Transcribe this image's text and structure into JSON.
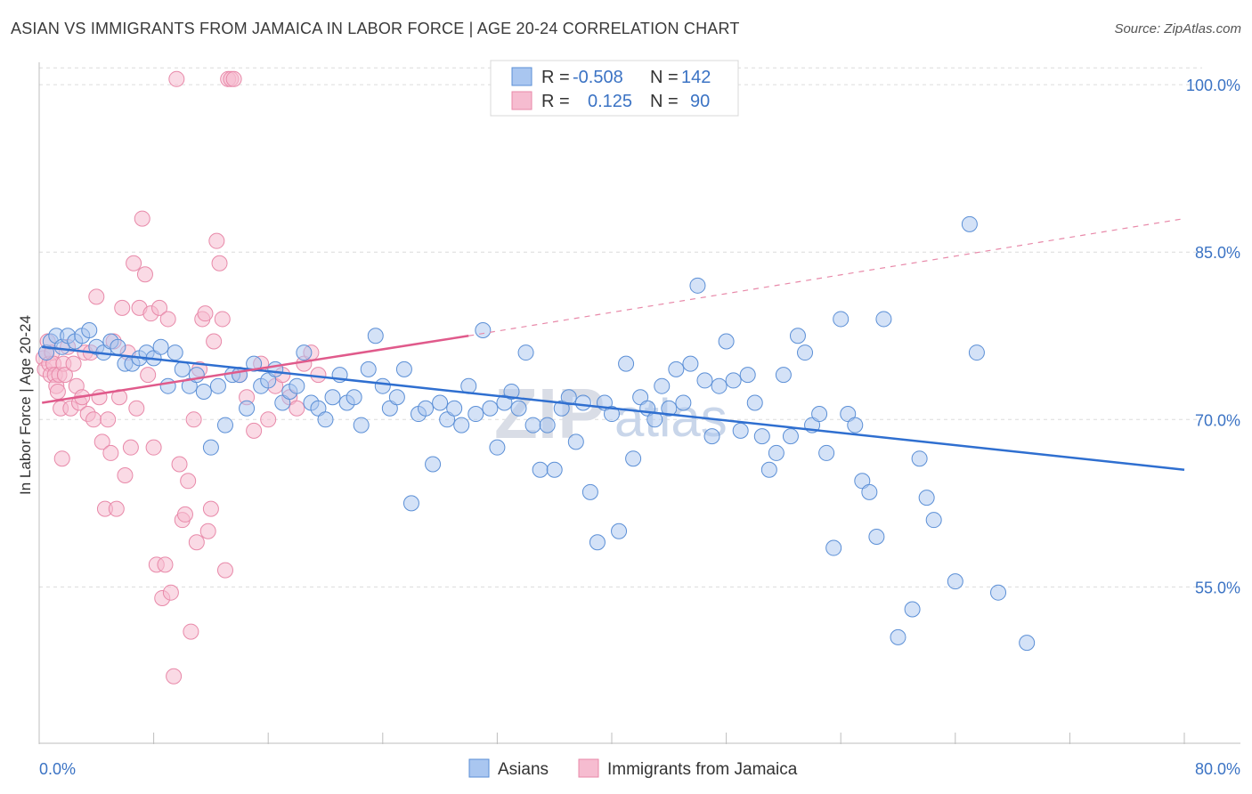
{
  "title": "ASIAN VS IMMIGRANTS FROM JAMAICA IN LABOR FORCE | AGE 20-24 CORRELATION CHART",
  "source": "Source: ZipAtlas.com",
  "watermark": {
    "zip": "ZIP",
    "atlas": "atlas"
  },
  "chart_data": {
    "type": "scatter",
    "title": "ASIAN VS IMMIGRANTS FROM JAMAICA IN LABOR FORCE | AGE 20-24 CORRELATION CHART",
    "ylabel": "In Labor Force | Age 20-24",
    "xlabel": "",
    "xlim": [
      0,
      80
    ],
    "ylim": [
      41,
      102
    ],
    "x_tick_labels": [
      "0.0%",
      "80.0%"
    ],
    "y_ticks": [
      55,
      70,
      85,
      100
    ],
    "y_tick_labels": [
      "55.0%",
      "70.0%",
      "85.0%",
      "100.0%"
    ],
    "grid": true,
    "legend": {
      "placement": "top-center",
      "entries": [
        {
          "r_label": "R =",
          "r_value": "-0.508",
          "n_label": "N =",
          "n_value": "142"
        },
        {
          "r_label": "R =",
          "r_value": "0.125",
          "n_label": "N =",
          "n_value": "90"
        }
      ]
    },
    "bottom_legend": [
      "Asians",
      "Immigrants from Jamaica"
    ],
    "colors": {
      "asians_fill": "#a9c6f0",
      "asians_stroke": "#5b8fd6",
      "asians_line": "#2f6fd0",
      "jamaica_fill": "#f6bcd0",
      "jamaica_stroke": "#e889a9",
      "jamaica_line": "#e05a8b",
      "axis_text": "#3b73c4"
    },
    "series": [
      {
        "name": "Asians",
        "trend": {
          "x0": 0.2,
          "y0": 76.5,
          "x1": 80,
          "y1": 65.5
        },
        "points": [
          [
            0.5,
            76
          ],
          [
            0.8,
            77
          ],
          [
            1.2,
            77.5
          ],
          [
            1.6,
            76.5
          ],
          [
            2,
            77.5
          ],
          [
            2.5,
            77
          ],
          [
            3,
            77.5
          ],
          [
            3.5,
            78
          ],
          [
            4,
            76.5
          ],
          [
            4.5,
            76
          ],
          [
            5,
            77
          ],
          [
            5.5,
            76.5
          ],
          [
            6,
            75
          ],
          [
            6.5,
            75
          ],
          [
            7,
            75.5
          ],
          [
            7.5,
            76
          ],
          [
            8,
            75.5
          ],
          [
            8.5,
            76.5
          ],
          [
            9,
            73
          ],
          [
            9.5,
            76
          ],
          [
            10,
            74.5
          ],
          [
            10.5,
            73
          ],
          [
            11,
            74
          ],
          [
            11.5,
            72.5
          ],
          [
            12,
            67.5
          ],
          [
            12.5,
            73
          ],
          [
            13,
            69.5
          ],
          [
            13.5,
            74
          ],
          [
            14,
            74
          ],
          [
            14.5,
            71
          ],
          [
            15,
            75
          ],
          [
            15.5,
            73
          ],
          [
            16,
            73.5
          ],
          [
            16.5,
            74.5
          ],
          [
            17,
            71.5
          ],
          [
            17.5,
            72.5
          ],
          [
            18,
            73
          ],
          [
            18.5,
            76
          ],
          [
            19,
            71.5
          ],
          [
            19.5,
            71
          ],
          [
            20,
            70
          ],
          [
            20.5,
            72
          ],
          [
            21,
            74
          ],
          [
            21.5,
            71.5
          ],
          [
            22,
            72
          ],
          [
            22.5,
            69.5
          ],
          [
            23,
            74.5
          ],
          [
            23.5,
            77.5
          ],
          [
            24,
            73
          ],
          [
            24.5,
            71
          ],
          [
            25,
            72
          ],
          [
            25.5,
            74.5
          ],
          [
            26,
            62.5
          ],
          [
            26.5,
            70.5
          ],
          [
            27,
            71
          ],
          [
            27.5,
            66
          ],
          [
            28,
            71.5
          ],
          [
            28.5,
            70
          ],
          [
            29,
            71
          ],
          [
            29.5,
            69.5
          ],
          [
            30,
            73
          ],
          [
            30.5,
            70.5
          ],
          [
            31,
            78
          ],
          [
            31.5,
            71
          ],
          [
            32,
            67.5
          ],
          [
            32.5,
            71.5
          ],
          [
            33,
            72.5
          ],
          [
            33.5,
            71
          ],
          [
            34,
            76
          ],
          [
            34.5,
            69.5
          ],
          [
            35,
            65.5
          ],
          [
            35.5,
            69.5
          ],
          [
            36,
            65.5
          ],
          [
            36.5,
            71
          ],
          [
            37,
            72
          ],
          [
            37.5,
            68
          ],
          [
            38,
            71.5
          ],
          [
            38.5,
            63.5
          ],
          [
            39,
            59
          ],
          [
            39.5,
            71.5
          ],
          [
            40,
            70.5
          ],
          [
            40.5,
            60
          ],
          [
            41,
            75
          ],
          [
            41.5,
            66.5
          ],
          [
            42,
            72
          ],
          [
            42.5,
            71
          ],
          [
            43,
            70
          ],
          [
            43.5,
            73
          ],
          [
            44,
            71
          ],
          [
            44.5,
            74.5
          ],
          [
            45,
            71.5
          ],
          [
            45.5,
            75
          ],
          [
            46,
            82
          ],
          [
            46.5,
            73.5
          ],
          [
            47,
            68.5
          ],
          [
            47.5,
            73
          ],
          [
            48,
            77
          ],
          [
            48.5,
            73.5
          ],
          [
            49,
            69
          ],
          [
            49.5,
            74
          ],
          [
            50,
            71.5
          ],
          [
            50.5,
            68.5
          ],
          [
            51,
            65.5
          ],
          [
            51.5,
            67
          ],
          [
            52,
            74
          ],
          [
            52.5,
            68.5
          ],
          [
            53,
            77.5
          ],
          [
            53.5,
            76
          ],
          [
            54,
            69.5
          ],
          [
            54.5,
            70.5
          ],
          [
            55,
            67
          ],
          [
            55.5,
            58.5
          ],
          [
            56,
            79
          ],
          [
            56.5,
            70.5
          ],
          [
            57,
            69.5
          ],
          [
            57.5,
            64.5
          ],
          [
            58,
            63.5
          ],
          [
            58.5,
            59.5
          ],
          [
            59,
            79
          ],
          [
            60,
            50.5
          ],
          [
            61,
            53
          ],
          [
            61.5,
            66.5
          ],
          [
            62,
            63
          ],
          [
            62.5,
            61
          ],
          [
            64,
            55.5
          ],
          [
            65,
            87.5
          ],
          [
            65.5,
            76
          ],
          [
            67,
            54.5
          ],
          [
            69,
            50
          ]
        ]
      },
      {
        "name": "Immigrants from Jamaica",
        "trend": {
          "x0": 0.2,
          "y0": 71.5,
          "x1": 30,
          "y1": 77.5
        },
        "trend_dashed": {
          "x0": 30,
          "y0": 77.5,
          "x1": 80,
          "y1": 88
        },
        "points": [
          [
            0.3,
            75.5
          ],
          [
            0.4,
            74.5
          ],
          [
            0.5,
            76
          ],
          [
            0.6,
            77
          ],
          [
            0.7,
            75
          ],
          [
            0.8,
            74
          ],
          [
            0.9,
            76
          ],
          [
            1,
            75
          ],
          [
            1.1,
            74
          ],
          [
            1.2,
            73
          ],
          [
            1.3,
            72.5
          ],
          [
            1.4,
            74
          ],
          [
            1.5,
            71
          ],
          [
            1.6,
            66.5
          ],
          [
            1.7,
            75
          ],
          [
            1.8,
            74
          ],
          [
            2,
            76.5
          ],
          [
            2.2,
            71
          ],
          [
            2.4,
            75
          ],
          [
            2.6,
            73
          ],
          [
            2.8,
            71.5
          ],
          [
            3,
            72
          ],
          [
            3.2,
            76
          ],
          [
            3.4,
            70.5
          ],
          [
            3.6,
            76
          ],
          [
            3.8,
            70
          ],
          [
            4,
            81
          ],
          [
            4.2,
            72
          ],
          [
            4.4,
            68
          ],
          [
            4.6,
            62
          ],
          [
            4.8,
            70
          ],
          [
            5,
            67
          ],
          [
            5.2,
            77
          ],
          [
            5.4,
            62
          ],
          [
            5.6,
            72
          ],
          [
            5.8,
            80
          ],
          [
            6,
            65
          ],
          [
            6.2,
            76
          ],
          [
            6.4,
            67.5
          ],
          [
            6.6,
            84
          ],
          [
            6.8,
            71
          ],
          [
            7,
            80
          ],
          [
            7.2,
            88
          ],
          [
            7.4,
            83
          ],
          [
            7.6,
            74
          ],
          [
            7.8,
            79.5
          ],
          [
            8,
            67.5
          ],
          [
            8.2,
            57
          ],
          [
            8.4,
            80
          ],
          [
            8.6,
            54
          ],
          [
            8.8,
            57
          ],
          [
            9,
            79
          ],
          [
            9.2,
            54.5
          ],
          [
            9.4,
            47
          ],
          [
            9.6,
            100.5
          ],
          [
            9.8,
            66
          ],
          [
            10,
            61
          ],
          [
            10.2,
            61.5
          ],
          [
            10.4,
            64.5
          ],
          [
            10.6,
            51
          ],
          [
            10.8,
            70
          ],
          [
            11,
            59
          ],
          [
            11.2,
            74.5
          ],
          [
            11.4,
            79
          ],
          [
            11.6,
            79.5
          ],
          [
            11.8,
            60
          ],
          [
            12,
            62
          ],
          [
            12.2,
            77
          ],
          [
            12.4,
            86
          ],
          [
            12.6,
            84
          ],
          [
            12.8,
            79
          ],
          [
            13,
            56.5
          ],
          [
            13.2,
            100.5
          ],
          [
            13.4,
            100.5
          ],
          [
            13.6,
            100.5
          ],
          [
            14,
            74
          ],
          [
            14.5,
            72
          ],
          [
            15,
            69
          ],
          [
            15.5,
            75
          ],
          [
            16,
            70
          ],
          [
            16.5,
            73
          ],
          [
            17,
            74
          ],
          [
            17.5,
            72
          ],
          [
            18,
            71
          ],
          [
            18.5,
            75
          ],
          [
            19,
            76
          ],
          [
            19.5,
            74
          ]
        ]
      }
    ]
  }
}
